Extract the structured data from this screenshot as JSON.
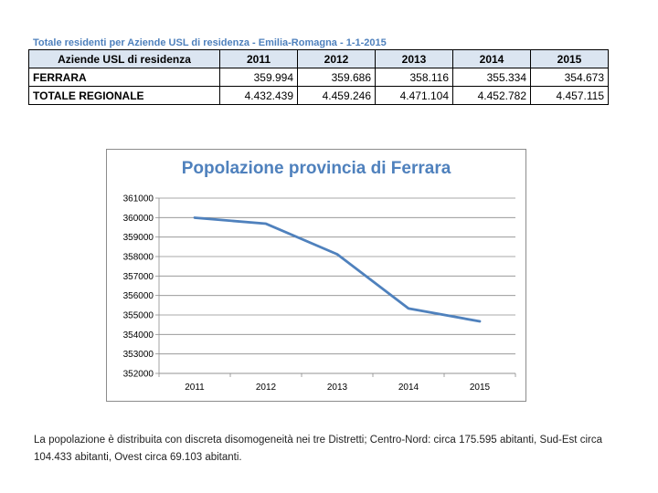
{
  "table": {
    "title": "Totale residenti per Aziende USL di residenza - Emilia-Romagna - 1-1-2015",
    "header": [
      "Aziende USL di residenza",
      "2011",
      "2012",
      "2013",
      "2014",
      "2015"
    ],
    "rows": [
      {
        "label": "FERRARA",
        "values": [
          "359.994",
          "359.686",
          "358.116",
          "355.334",
          "354.673"
        ]
      },
      {
        "label": "TOTALE REGIONALE",
        "values": [
          "4.432.439",
          "4.459.246",
          "4.471.104",
          "4.452.782",
          "4.457.115"
        ]
      }
    ]
  },
  "chart_data": {
    "type": "line",
    "title": "Popolazione provincia di Ferrara",
    "categories": [
      "2011",
      "2012",
      "2013",
      "2014",
      "2015"
    ],
    "series": [
      {
        "values": [
          359994,
          359686,
          358116,
          355334,
          354673
        ]
      }
    ],
    "ylim": [
      352000,
      361000
    ],
    "yticks": [
      "352000",
      "353000",
      "354000",
      "355000",
      "356000",
      "357000",
      "358000",
      "359000",
      "360000",
      "361000"
    ],
    "grid": true,
    "legend": "none",
    "line_color": "#4f81bd"
  },
  "footnote": "La popolazione è distribuita con discreta disomogeneità nei tre Distretti; Centro-Nord: circa 175.595 abitanti, Sud-Est circa 104.433 abitanti, Ovest circa 69.103 abitanti."
}
